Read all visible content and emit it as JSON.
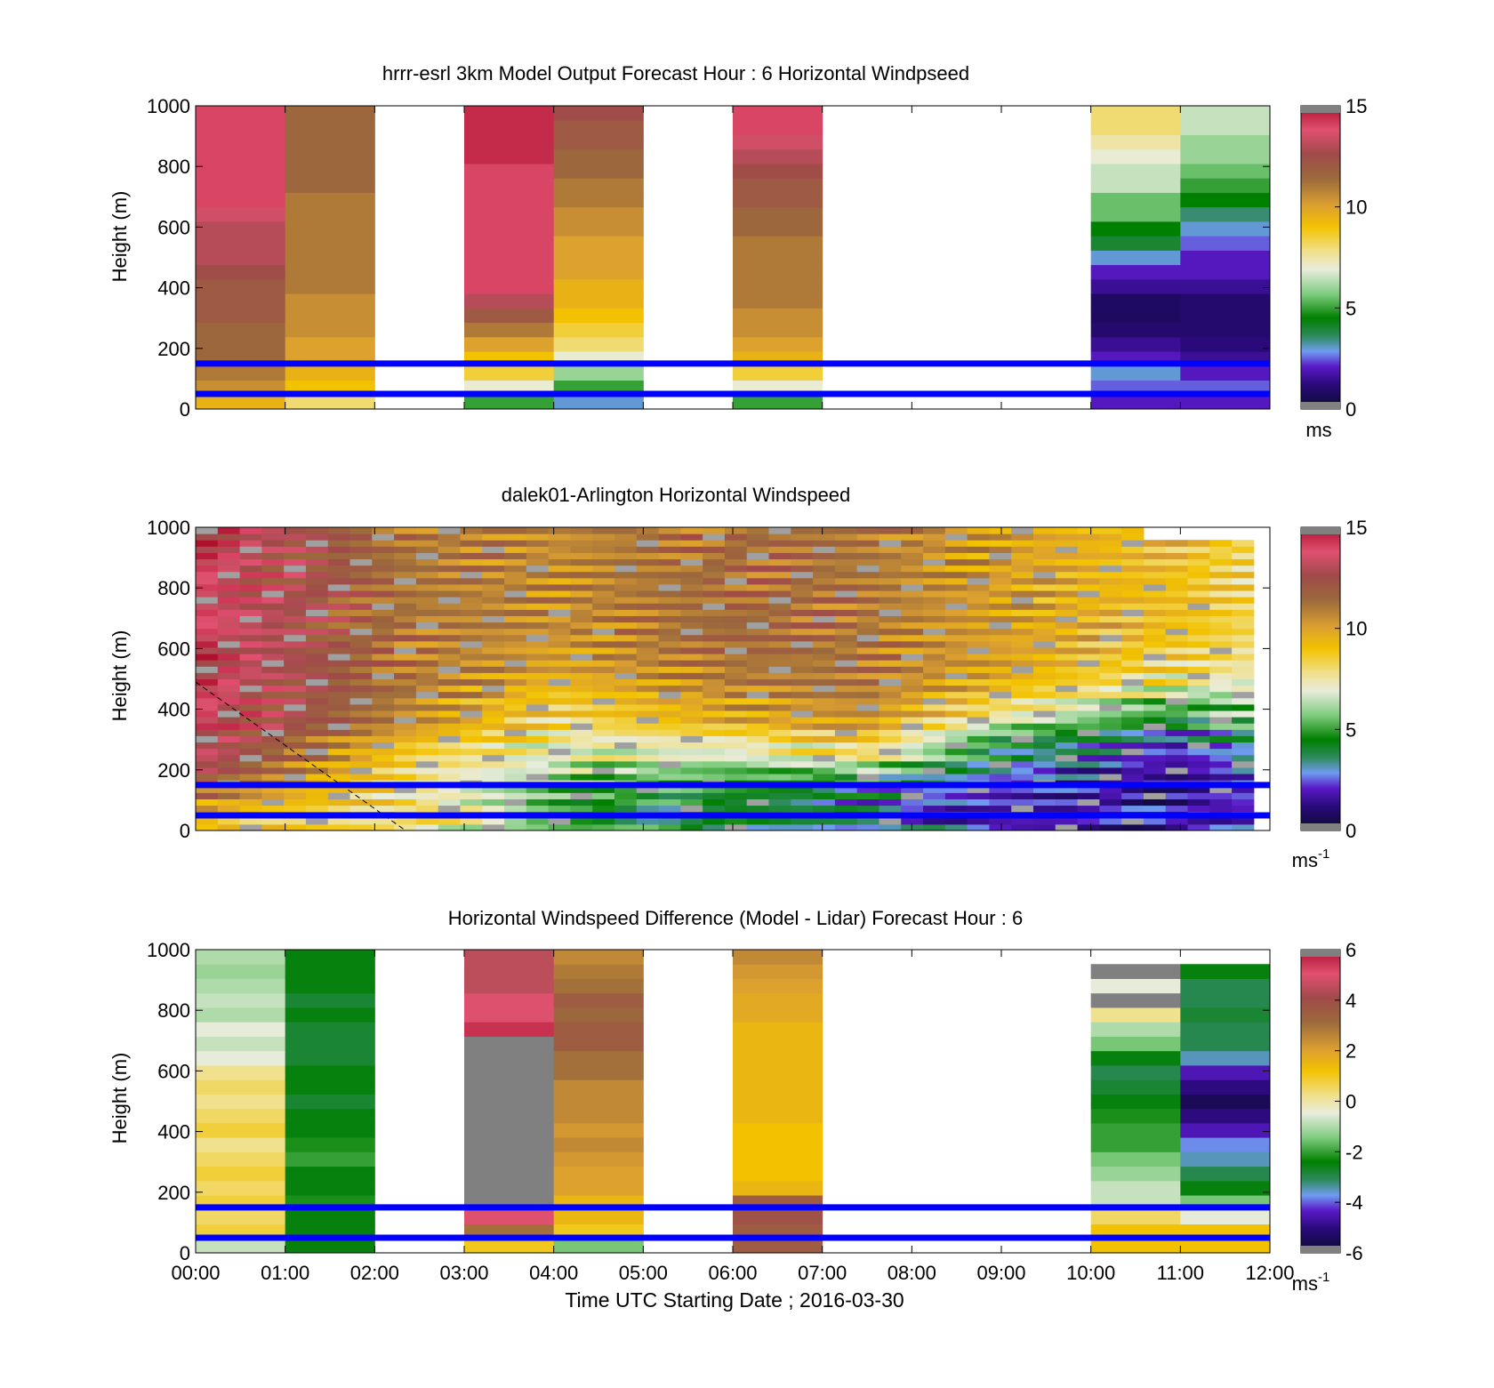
{
  "figure": {
    "xlabel": "Time UTC  Starting Date ; 2016-03-30",
    "xticks": [
      "00:00",
      "01:00",
      "02:00",
      "03:00",
      "04:00",
      "05:00",
      "06:00",
      "07:00",
      "08:00",
      "09:00",
      "10:00",
      "11:00",
      "12:00"
    ],
    "ref_line_color": "#0000ff",
    "ref_heights": [
      150,
      50
    ]
  },
  "chart_data": [
    {
      "type": "heatmap",
      "title": "hrrr-esrl 3km Model Output   Forecast Hour : 6 Horizontal Windpseed",
      "ylabel": "Height (m)",
      "ylim": [
        0,
        1000
      ],
      "yticks": [
        "0",
        "200",
        "400",
        "600",
        "800",
        "1000"
      ],
      "xlim_hours": [
        0,
        12
      ],
      "colorbar": {
        "ticks": [
          "0",
          "5",
          "10",
          "15"
        ],
        "range": [
          0,
          15
        ],
        "unit": "ms"
      },
      "columns": [
        {
          "hour": 0,
          "values": [
            9.5,
            10.5,
            11,
            11.5,
            11.5,
            11.5,
            12,
            12,
            12,
            12.5,
            13,
            13,
            13,
            13.5,
            14,
            14,
            14,
            14,
            14,
            14,
            14
          ]
        },
        {
          "hour": 1,
          "values": [
            8,
            9,
            9.5,
            10,
            10,
            10.5,
            10.5,
            10.5,
            11,
            11,
            11,
            11,
            11,
            11,
            11,
            11.5,
            11.5,
            11.5,
            11.5,
            11.5,
            11.5
          ]
        },
        {
          "hour": 3,
          "values": [
            5,
            7,
            8.5,
            9,
            10,
            11,
            12,
            13,
            14,
            14,
            14,
            14,
            14,
            14,
            14,
            14,
            14,
            14.5,
            14.5,
            14.5,
            14.5
          ]
        },
        {
          "hour": 4,
          "values": [
            3,
            5,
            6,
            7,
            8,
            8.5,
            9,
            9.5,
            9.5,
            10,
            10,
            10,
            10.5,
            10.5,
            11,
            11,
            11.5,
            11.5,
            12,
            12,
            12.5
          ]
        },
        {
          "hour": 6,
          "values": [
            5,
            7,
            8.5,
            9.5,
            10,
            10.5,
            10.5,
            11,
            11,
            11,
            11,
            11,
            11.5,
            11.5,
            12,
            12,
            12.5,
            13,
            13.5,
            14,
            14
          ]
        },
        {
          "hour": 10,
          "values": [
            2,
            2.5,
            3,
            2,
            1.5,
            1,
            0.8,
            0.8,
            1.5,
            2,
            3,
            4,
            4.5,
            5.5,
            5.5,
            6.5,
            6.5,
            7,
            7.5,
            8,
            8
          ]
        },
        {
          "hour": 11,
          "values": [
            2,
            2.5,
            2,
            1.5,
            1.2,
            1,
            1,
            1,
            1.5,
            2,
            2,
            2.5,
            3,
            3.5,
            4.5,
            5,
            5.5,
            6,
            6,
            6.5,
            6.5
          ]
        }
      ]
    },
    {
      "type": "heatmap",
      "title": "dalek01-Arlington  Horizontal Windspeed",
      "ylabel": "Height (m)",
      "ylim": [
        0,
        1000
      ],
      "yticks": [
        "0",
        "200",
        "400",
        "600",
        "800",
        "1000"
      ],
      "xlim_hours": [
        0,
        12
      ],
      "colorbar": {
        "ticks": [
          "0",
          "5",
          "10",
          "15"
        ],
        "range": [
          0,
          15
        ],
        "unit": "ms",
        "unit_sup": "-1"
      },
      "profiles_hours": [
        0,
        2.5,
        4,
        6,
        7.5,
        9,
        11,
        12
      ],
      "profiles_values": [
        [
          9,
          10,
          11.5,
          12.5,
          13,
          13.5,
          13.5,
          14,
          14,
          14,
          14,
          14,
          14,
          14,
          14,
          14,
          14,
          14,
          14,
          14,
          14
        ],
        [
          8,
          8,
          7.5,
          7.5,
          8,
          8.5,
          9.5,
          10.5,
          10.5,
          11,
          11,
          11,
          11,
          11,
          11,
          11,
          11,
          11,
          11,
          11,
          11
        ],
        [
          5,
          5,
          5.5,
          6,
          6.5,
          7,
          7.5,
          8,
          8.5,
          9,
          9.5,
          10,
          10,
          10.5,
          10.5,
          10.5,
          10.5,
          10.5,
          10.5,
          10.5,
          10.5
        ],
        [
          4,
          4,
          4.5,
          5,
          5.5,
          7,
          8,
          9.5,
          10,
          10.5,
          11,
          11,
          11.5,
          11.5,
          11.5,
          11.5,
          11.5,
          11.5,
          11.5,
          11.5,
          11.5
        ],
        [
          3,
          3,
          3.5,
          4.5,
          6,
          8,
          9,
          10,
          10.5,
          11,
          11,
          11,
          11,
          11,
          11,
          11,
          11,
          11,
          11,
          11,
          11
        ],
        [
          2,
          2,
          2,
          2.5,
          3,
          4,
          5,
          6.5,
          8,
          9,
          9.5,
          10,
          10,
          10,
          10,
          10,
          10,
          10,
          10,
          10,
          10
        ],
        [
          1.5,
          1.5,
          1.5,
          1.5,
          1.5,
          2,
          2.5,
          4,
          5,
          6.5,
          7.5,
          8,
          8.5,
          9,
          9,
          9,
          9,
          9,
          9,
          9,
          9
        ],
        [
          2.5,
          2.5,
          2.5,
          2.5,
          3,
          3.5,
          4.5,
          5.5,
          6,
          6.5,
          7,
          7.5,
          7.5,
          8,
          8,
          8,
          8,
          8,
          8,
          8,
          8
        ]
      ],
      "max_height_end": 960
    },
    {
      "type": "heatmap",
      "title": "Horizontal Windspeed Difference (Model - Lidar) Forecast Hour : 6",
      "ylabel": "Height (m)",
      "ylim": [
        0,
        1000
      ],
      "yticks": [
        "0",
        "200",
        "400",
        "600",
        "800",
        "1000"
      ],
      "xlim_hours": [
        0,
        12
      ],
      "colorbar": {
        "ticks": [
          "-6",
          "-4",
          "-2",
          "0",
          "2",
          "4",
          "6"
        ],
        "range": [
          -6,
          6
        ],
        "unit": "ms",
        "unit_sup": "-1"
      },
      "columns": [
        {
          "hour": 0,
          "values": [
            -0.8,
            0.8,
            0.5,
            0.8,
            0.5,
            0.8,
            0.5,
            0.2,
            0.8,
            0.5,
            0.2,
            0.5,
            0.2,
            -0.5,
            -0.8,
            -0.5,
            -1,
            -0.8,
            -1,
            -1.2,
            -1
          ]
        },
        {
          "hour": 1,
          "values": [
            -2.5,
            -2.5,
            -2.5,
            -2.2,
            -2.5,
            -2.5,
            -2,
            -2.2,
            -2.5,
            -2.5,
            -2.8,
            -2.5,
            -2.5,
            -2.8,
            -2.8,
            -2.8,
            -2.5,
            -2.8,
            -2.5,
            -2.5,
            -2.5
          ]
        },
        {
          "hour": 3,
          "values": [
            1,
            3,
            5,
            "nan",
            "nan",
            "nan",
            "nan",
            "nan",
            "nan",
            "nan",
            "nan",
            "nan",
            "nan",
            "nan",
            "nan",
            5.5,
            5,
            5,
            4.5,
            4.5,
            4.5
          ]
        },
        {
          "hour": 4,
          "values": [
            -1.5,
            1,
            1.5,
            1.5,
            2,
            2,
            2.2,
            2.5,
            2.2,
            2.5,
            2.5,
            2.5,
            3,
            3,
            3.5,
            3.5,
            3.2,
            3.5,
            3,
            2.8,
            2.5
          ]
        },
        {
          "hour": 6,
          "values": [
            3.5,
            3.5,
            3.8,
            3.5,
            1.5,
            1.2,
            1.2,
            1.2,
            1.2,
            1.5,
            1.5,
            1.5,
            1.5,
            1.5,
            1.5,
            1.5,
            1.8,
            1.8,
            2,
            2.2,
            2.5
          ]
        },
        {
          "hour": 10,
          "values": [
            1.2,
            1.2,
            0.5,
            -0.8,
            -0.8,
            -1.2,
            -1.5,
            -2,
            -2,
            -2.2,
            -2.5,
            -2.8,
            -3,
            -2.5,
            -1.5,
            -1,
            0.2,
            "nan",
            -0.5,
            "nan",
            null
          ]
        },
        {
          "hour": 11,
          "values": [
            1.2,
            1.2,
            -0.5,
            -1.5,
            -2.5,
            -3,
            -3.5,
            -3.8,
            -4.5,
            -5,
            -5.5,
            -5,
            -4.5,
            -3.5,
            -3,
            -3,
            -2.8,
            -3,
            -3,
            -2.5,
            null
          ]
        }
      ]
    }
  ]
}
